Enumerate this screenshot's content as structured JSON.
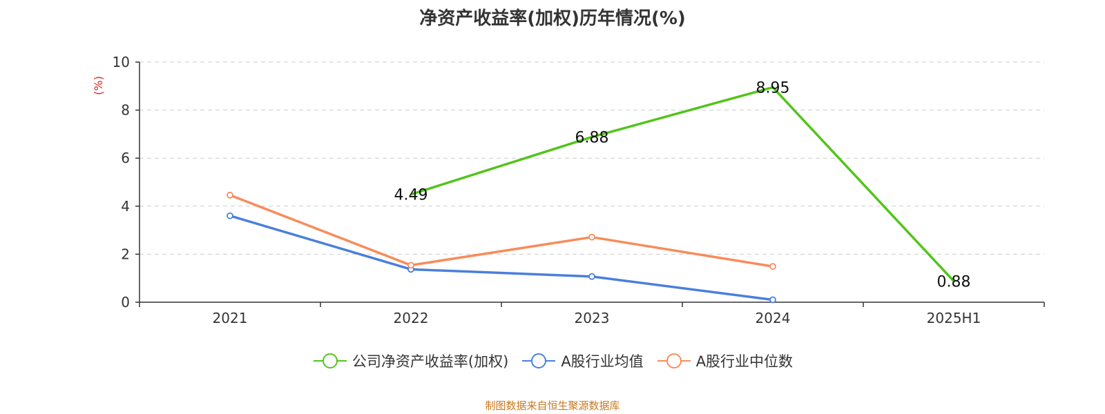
{
  "chart_data": {
    "type": "line",
    "title": "净资产收益率(加权)历年情况(%)",
    "ylabel": "(%)",
    "xlabel": "",
    "categories": [
      "2021",
      "2022",
      "2023",
      "2024",
      "2025H1"
    ],
    "ylim": [
      0,
      10
    ],
    "yticks": [
      0,
      2,
      4,
      6,
      8,
      10
    ],
    "grid": true,
    "legend_position": "bottom",
    "series": [
      {
        "name": "公司净资产收益率(加权)",
        "color": "#52c41a",
        "values": [
          null,
          4.49,
          6.88,
          8.95,
          0.88
        ],
        "show_labels": true,
        "labels": [
          "",
          "4.49",
          "6.88",
          "8.95",
          "0.88"
        ]
      },
      {
        "name": "A股行业均值",
        "color": "#4a7fdc",
        "values": [
          3.6,
          1.37,
          1.07,
          0.1,
          null
        ],
        "show_labels": false
      },
      {
        "name": "A股行业中位数",
        "color": "#f98b5a",
        "values": [
          4.46,
          1.54,
          2.71,
          1.49,
          null
        ],
        "show_labels": false
      }
    ]
  },
  "source_text": "制图数据来自恒生聚源数据库",
  "source_color": "#c8781e",
  "axis_label_color": "#e02020"
}
